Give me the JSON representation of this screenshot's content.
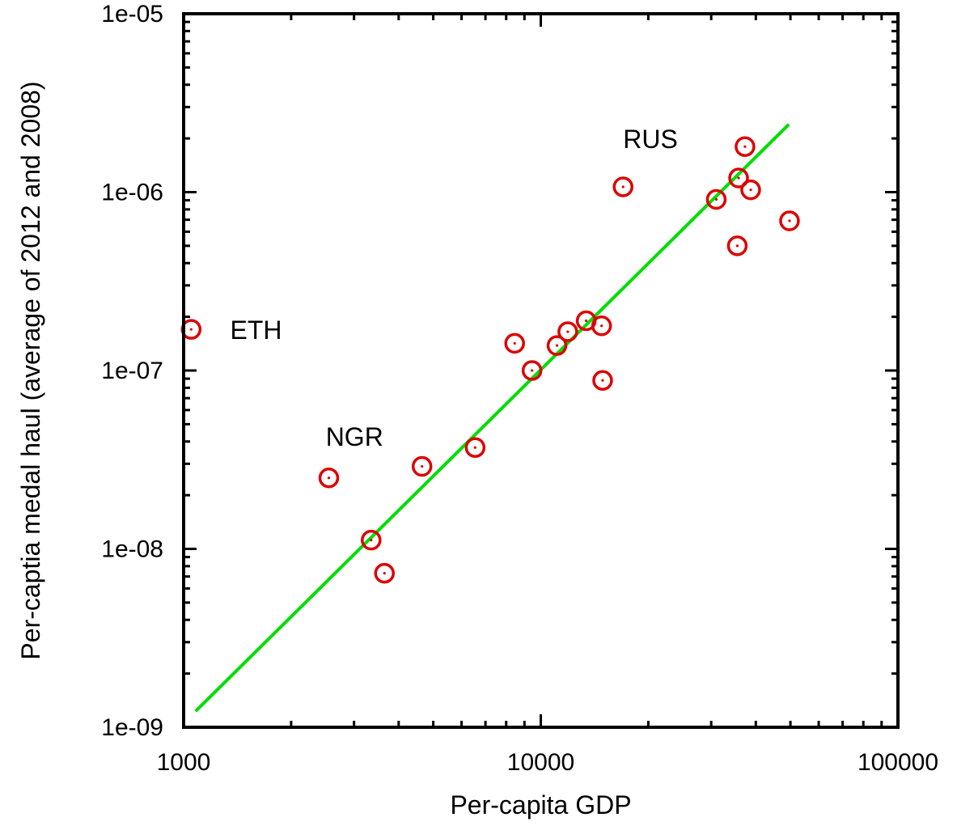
{
  "chart_data": {
    "type": "scatter",
    "title": "",
    "xlabel": "Per-capita GDP",
    "ylabel": "Per-captia medal haul (average of 2012 and 2008)",
    "x_scale": "log",
    "y_scale": "log",
    "xlim": [
      1000,
      100000
    ],
    "ylim": [
      1e-09,
      1e-05
    ],
    "x_ticks": [
      1000,
      10000,
      100000
    ],
    "x_tick_labels": [
      "1000",
      "10000",
      "100000"
    ],
    "y_ticks": [
      1e-09,
      1e-08,
      1e-07,
      1e-06,
      1e-05
    ],
    "y_tick_labels": [
      "1e-09",
      "1e-08",
      "1e-07",
      "1e-06",
      "1e-05"
    ],
    "grid": false,
    "legend": "none",
    "colors": {
      "points": "#dd0000",
      "fit_line": "#00dd00",
      "axes": "#000000"
    },
    "series": [
      {
        "marker": "circle-dot",
        "points": [
          {
            "x": 1050,
            "y": 1.7e-07
          },
          {
            "x": 2550,
            "y": 2.5e-08
          },
          {
            "x": 3350,
            "y": 1.12e-08
          },
          {
            "x": 3650,
            "y": 7.3e-09
          },
          {
            "x": 4650,
            "y": 2.9e-08
          },
          {
            "x": 6550,
            "y": 3.7e-08
          },
          {
            "x": 8450,
            "y": 1.42e-07
          },
          {
            "x": 9450,
            "y": 1e-07
          },
          {
            "x": 11100,
            "y": 1.38e-07
          },
          {
            "x": 11900,
            "y": 1.65e-07
          },
          {
            "x": 13400,
            "y": 1.9e-07
          },
          {
            "x": 14800,
            "y": 1.78e-07
          },
          {
            "x": 14900,
            "y": 8.8e-08
          },
          {
            "x": 17000,
            "y": 1.07e-06
          },
          {
            "x": 31000,
            "y": 9.1e-07
          },
          {
            "x": 35500,
            "y": 5e-07
          },
          {
            "x": 35800,
            "y": 1.2e-06
          },
          {
            "x": 37300,
            "y": 1.8e-06
          },
          {
            "x": 38700,
            "y": 1.03e-06
          },
          {
            "x": 49700,
            "y": 6.9e-07
          }
        ]
      }
    ],
    "fit_line": {
      "x": [
        1080,
        49500
      ],
      "y": [
        1.23e-09,
        2.4e-06
      ]
    },
    "annotations": [
      {
        "text": "ETH",
        "x": 1350,
        "y": 1.7e-07
      },
      {
        "text": "NGR",
        "x": 2500,
        "y": 4.3e-08
      },
      {
        "text": "RUS",
        "x": 17000,
        "y": 2e-06
      }
    ]
  }
}
